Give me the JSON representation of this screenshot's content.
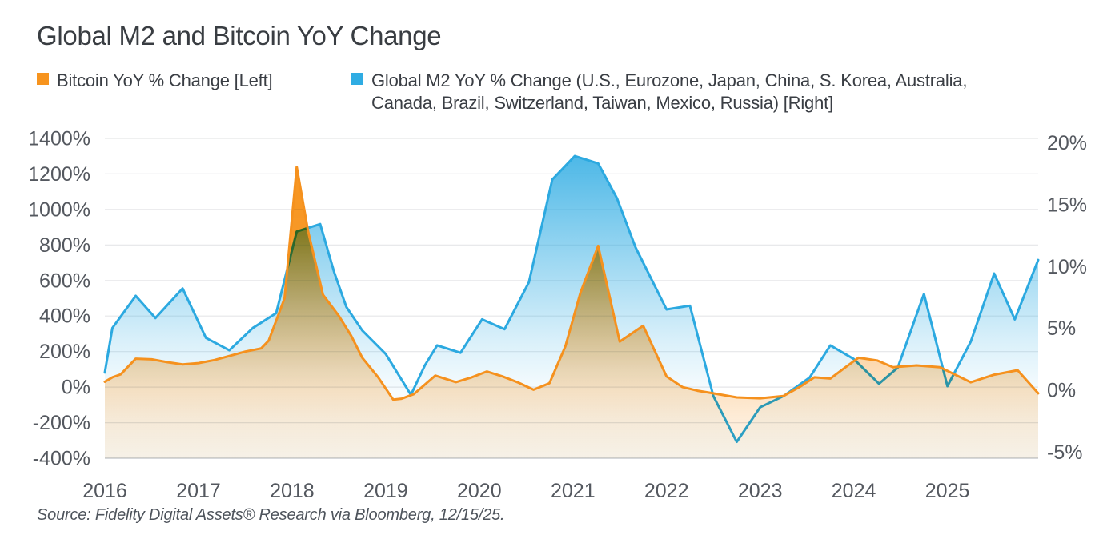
{
  "title": "Global M2 and Bitcoin YoY Change",
  "legend": {
    "bitcoin_label": "Bitcoin YoY % Change [Left]",
    "m2_label": "Global M2 YoY % Change (U.S., Eurozone, Japan, China, S. Korea, Australia, Canada, Brazil, Switzerland, Taiwan, Mexico, Russia) [Right]"
  },
  "source_note": "Source: Fidelity Digital Assets® Research via Bloomberg, 12/15/25.",
  "colors": {
    "bitcoin_orange": "#F5911E",
    "bitcoin_fill": "#F7941E",
    "m2_blue": "#2CA9E0",
    "m2_fill": "#2FACE3",
    "grid": "#E5E6E8",
    "axis_line": "#C8CBCF",
    "tick_text": "#54585F"
  },
  "chart_data": {
    "type": "area",
    "title": "Global M2 and Bitcoin YoY Change",
    "grid": true,
    "x_axis": {
      "domain": [
        2016,
        2025.97
      ],
      "ticks": [
        2016,
        2017,
        2018,
        2019,
        2020,
        2021,
        2022,
        2023,
        2024,
        2025
      ]
    },
    "y_left": {
      "name": "Bitcoin YoY % Change",
      "unit": "%",
      "range": [
        -400,
        1400
      ],
      "ticks": [
        1400,
        1200,
        1000,
        800,
        600,
        400,
        200,
        0,
        -200,
        -400
      ]
    },
    "y_right": {
      "name": "Global M2 YoY % Change",
      "unit": "%",
      "range": [
        -5,
        20
      ],
      "ticks": [
        20,
        15,
        10,
        5,
        0,
        -5
      ]
    },
    "series": [
      {
        "name": "Bitcoin YoY % Change [Left]",
        "axis": "left",
        "color": "#F5911E",
        "gradient": "orange",
        "points": [
          [
            2016.0,
            30
          ],
          [
            2016.08,
            55
          ],
          [
            2016.17,
            72
          ],
          [
            2016.33,
            160
          ],
          [
            2016.5,
            156
          ],
          [
            2016.67,
            140
          ],
          [
            2016.83,
            128
          ],
          [
            2017.0,
            135
          ],
          [
            2017.17,
            152
          ],
          [
            2017.33,
            175
          ],
          [
            2017.5,
            200
          ],
          [
            2017.67,
            218
          ],
          [
            2017.75,
            262
          ],
          [
            2017.92,
            500
          ],
          [
            2018.05,
            1240
          ],
          [
            2018.17,
            880
          ],
          [
            2018.33,
            520
          ],
          [
            2018.5,
            400
          ],
          [
            2018.63,
            290
          ],
          [
            2018.75,
            165
          ],
          [
            2018.92,
            55
          ],
          [
            2019.08,
            -70
          ],
          [
            2019.17,
            -65
          ],
          [
            2019.3,
            -40
          ],
          [
            2019.53,
            65
          ],
          [
            2019.75,
            28
          ],
          [
            2019.92,
            55
          ],
          [
            2020.08,
            88
          ],
          [
            2020.25,
            60
          ],
          [
            2020.42,
            25
          ],
          [
            2020.58,
            -15
          ],
          [
            2020.75,
            22
          ],
          [
            2020.92,
            230
          ],
          [
            2021.08,
            530
          ],
          [
            2021.27,
            795
          ],
          [
            2021.5,
            256
          ],
          [
            2021.75,
            345
          ],
          [
            2022.0,
            60
          ],
          [
            2022.17,
            0
          ],
          [
            2022.33,
            -20
          ],
          [
            2022.5,
            -35
          ],
          [
            2022.75,
            -58
          ],
          [
            2023.0,
            -63
          ],
          [
            2023.25,
            -50
          ],
          [
            2023.42,
            0
          ],
          [
            2023.58,
            55
          ],
          [
            2023.75,
            48
          ],
          [
            2023.92,
            115
          ],
          [
            2024.05,
            165
          ],
          [
            2024.25,
            150
          ],
          [
            2024.42,
            112
          ],
          [
            2024.67,
            122
          ],
          [
            2024.92,
            112
          ],
          [
            2025.25,
            27
          ],
          [
            2025.5,
            70
          ],
          [
            2025.75,
            95
          ],
          [
            2025.97,
            -35
          ]
        ]
      },
      {
        "name": "Global M2 YoY % Change (U.S., Eurozone, Japan, China, S. Korea, Australia, Canada, Brazil, Switzerland, Taiwan, Mexico, Russia) [Right]",
        "axis": "right",
        "color": "#2CA9E0",
        "gradient": "blue",
        "points": [
          [
            2016.0,
            1.4
          ],
          [
            2016.08,
            5.0
          ],
          [
            2016.33,
            7.6
          ],
          [
            2016.54,
            5.8
          ],
          [
            2016.83,
            8.2
          ],
          [
            2017.08,
            4.2
          ],
          [
            2017.33,
            3.2
          ],
          [
            2017.58,
            5.0
          ],
          [
            2017.83,
            6.2
          ],
          [
            2018.05,
            12.8
          ],
          [
            2018.3,
            13.4
          ],
          [
            2018.45,
            9.5
          ],
          [
            2018.58,
            6.7
          ],
          [
            2018.75,
            4.8
          ],
          [
            2019.0,
            2.9
          ],
          [
            2019.27,
            -0.4
          ],
          [
            2019.42,
            2.0
          ],
          [
            2019.55,
            3.6
          ],
          [
            2019.8,
            3.0
          ],
          [
            2020.03,
            5.7
          ],
          [
            2020.27,
            4.9
          ],
          [
            2020.53,
            8.7
          ],
          [
            2020.78,
            17.0
          ],
          [
            2021.02,
            18.9
          ],
          [
            2021.27,
            18.3
          ],
          [
            2021.47,
            15.5
          ],
          [
            2021.67,
            11.5
          ],
          [
            2022.0,
            6.5
          ],
          [
            2022.25,
            6.8
          ],
          [
            2022.5,
            -0.5
          ],
          [
            2022.75,
            -4.2
          ],
          [
            2023.0,
            -1.4
          ],
          [
            2023.25,
            -0.5
          ],
          [
            2023.53,
            1.0
          ],
          [
            2023.75,
            3.6
          ],
          [
            2024.0,
            2.5
          ],
          [
            2024.27,
            0.5
          ],
          [
            2024.47,
            1.8
          ],
          [
            2024.75,
            7.75
          ],
          [
            2025.0,
            0.3
          ],
          [
            2025.25,
            3.9
          ],
          [
            2025.5,
            9.4
          ],
          [
            2025.72,
            5.7
          ],
          [
            2025.97,
            10.5
          ]
        ]
      }
    ]
  }
}
